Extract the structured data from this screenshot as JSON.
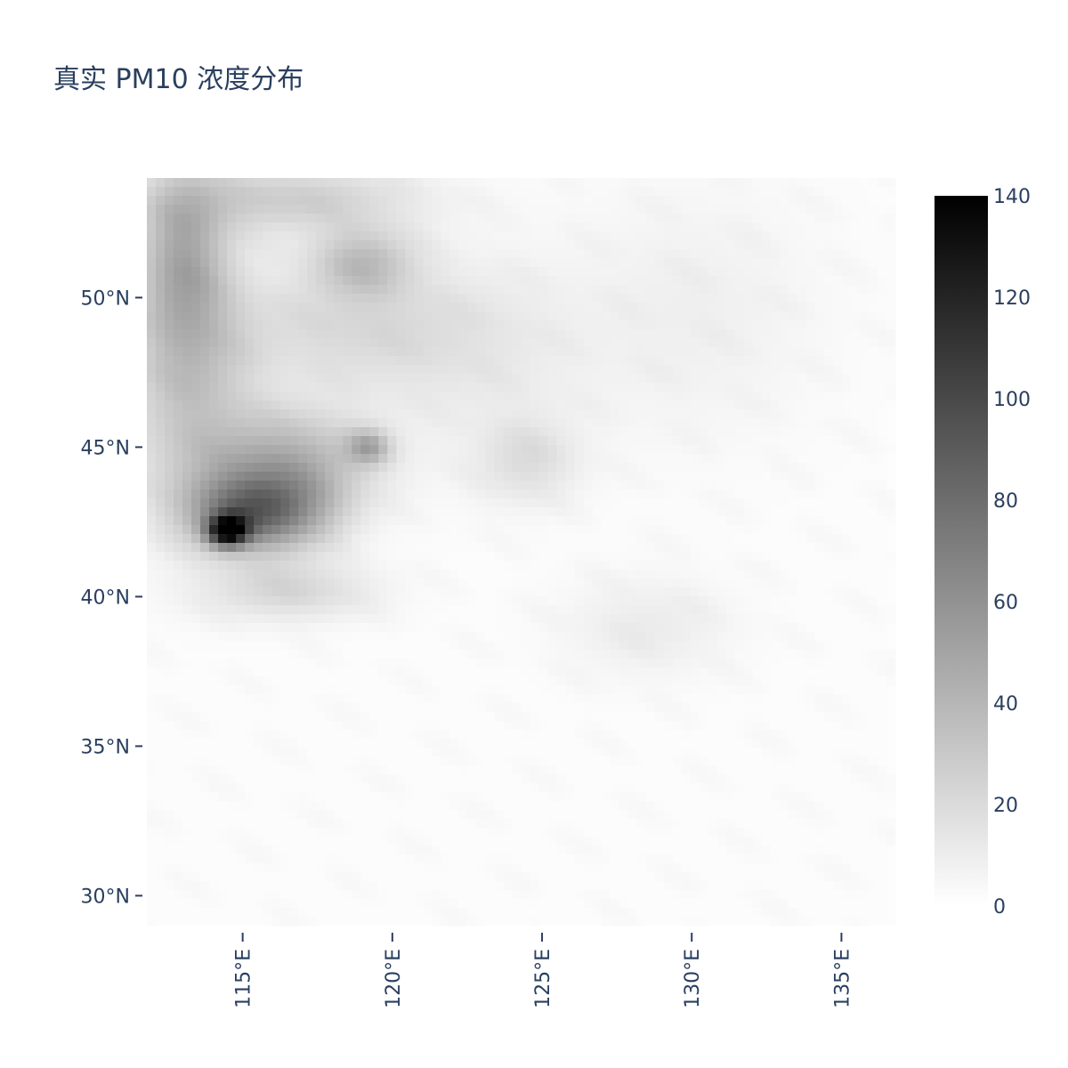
{
  "chart_data": {
    "type": "heatmap",
    "title": "真实 PM10 浓度分布",
    "xlabel": "",
    "ylabel": "",
    "x_ticks": [
      "115°E",
      "120°E",
      "125°E",
      "130°E",
      "135°E"
    ],
    "x_tick_values": [
      115,
      120,
      125,
      130,
      135
    ],
    "y_ticks": [
      "50°N",
      "45°N",
      "40°N",
      "35°N",
      "30°N"
    ],
    "y_tick_values": [
      50,
      45,
      40,
      35,
      30
    ],
    "xlim": [
      111.8,
      136.8
    ],
    "ylim": [
      29.0,
      54.0
    ],
    "colorscale": [
      "#ffffff",
      "#000000"
    ],
    "colorbar": {
      "range": [
        0,
        140
      ],
      "ticks": [
        "0",
        "20",
        "40",
        "60",
        "80",
        "100",
        "120",
        "140"
      ]
    },
    "grid": false,
    "hotspots": [
      {
        "lon": 115.5,
        "lat": 42.8,
        "value": 75,
        "sx": 1.6,
        "sy": 0.9
      },
      {
        "lon": 114.5,
        "lat": 42.2,
        "value": 115,
        "sx": 0.45,
        "sy": 0.35
      },
      {
        "lon": 116.5,
        "lat": 44.5,
        "value": 40,
        "sx": 2.0,
        "sy": 1.2
      },
      {
        "lon": 113.2,
        "lat": 47.5,
        "value": 30,
        "sx": 1.5,
        "sy": 3.0
      },
      {
        "lon": 113.0,
        "lat": 51.5,
        "value": 35,
        "sx": 1.0,
        "sy": 2.0
      },
      {
        "lon": 119.0,
        "lat": 51.2,
        "value": 30,
        "sx": 1.2,
        "sy": 0.8
      },
      {
        "lon": 116.5,
        "lat": 53.3,
        "value": 25,
        "sx": 3.0,
        "sy": 0.8
      },
      {
        "lon": 118.5,
        "lat": 49.0,
        "value": 18,
        "sx": 3.0,
        "sy": 1.5
      },
      {
        "lon": 116.5,
        "lat": 40.2,
        "value": 20,
        "sx": 2.0,
        "sy": 0.7
      },
      {
        "lon": 119.2,
        "lat": 45.0,
        "value": 35,
        "sx": 0.5,
        "sy": 0.4
      },
      {
        "lon": 124.5,
        "lat": 44.5,
        "value": 15,
        "sx": 1.2,
        "sy": 1.0
      },
      {
        "lon": 128.5,
        "lat": 39.0,
        "value": 9,
        "sx": 2.0,
        "sy": 1.2
      },
      {
        "lon": 130.0,
        "lat": 49.5,
        "value": 7,
        "sx": 3.0,
        "sy": 3.0
      },
      {
        "lon": 123.0,
        "lat": 48.0,
        "value": 8,
        "sx": 2.5,
        "sy": 2.5
      }
    ]
  }
}
